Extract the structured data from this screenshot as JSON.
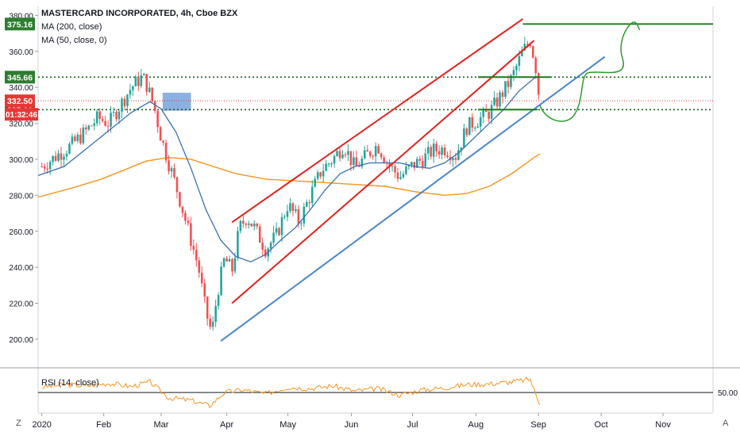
{
  "legend": {
    "title": "MASTERCARD INCORPORATED, 4h, Cboe BZX",
    "ma200": "MA (200, close)",
    "ma50": "MA (50, close, 0)"
  },
  "rsi_label": "RSI (14, close)",
  "corner_left": "Z",
  "corner_right": "A",
  "colors": {
    "up": "#26a69a",
    "down": "#ef5350",
    "ma50": "#3a6fb0",
    "ma200": "#f7931e",
    "channel": "#e3211c",
    "trend": "#4a86c8",
    "level": "#1b7a1b",
    "rsi": "#f7931e",
    "price_current": "#e53935",
    "level_badge": "#2e7d32"
  },
  "chart_data": {
    "type": "candlestick",
    "symbol": "MASTERCARD INCORPORATED",
    "interval": "4h",
    "exchange": "Cboe BZX",
    "ylim": [
      185,
      385
    ],
    "y_ticks": [
      200,
      220,
      240,
      260,
      280,
      300,
      320,
      340,
      360,
      380
    ],
    "y_tick_labels": [
      "200.00",
      "220.00",
      "240.00",
      "260.00",
      "280.00",
      "300.00",
      "320.00",
      "340.00",
      "360.00",
      "380.00"
    ],
    "x_labels": [
      "2020",
      "Feb",
      "Mar",
      "Apr",
      "May",
      "Jun",
      "Jul",
      "Aug",
      "Sep",
      "Oct",
      "Nov"
    ],
    "x_label_positions": [
      2020.0,
      2020.083,
      2020.16,
      2020.248,
      2020.33,
      2020.415,
      2020.497,
      2020.582,
      2020.666,
      2020.75,
      2020.833
    ],
    "xlim": [
      2019.995,
      2020.9
    ],
    "price_path": [
      [
        2020.0,
        296
      ],
      [
        2020.02,
        302
      ],
      [
        2020.04,
        308
      ],
      [
        2020.06,
        316
      ],
      [
        2020.075,
        323
      ],
      [
        2020.09,
        320
      ],
      [
        2020.105,
        330
      ],
      [
        2020.12,
        340
      ],
      [
        2020.135,
        346
      ],
      [
        2020.14,
        342
      ],
      [
        2020.15,
        330
      ],
      [
        2020.16,
        312
      ],
      [
        2020.17,
        298
      ],
      [
        2020.18,
        285
      ],
      [
        2020.19,
        270
      ],
      [
        2020.2,
        255
      ],
      [
        2020.21,
        240
      ],
      [
        2020.22,
        215
      ],
      [
        2020.228,
        203
      ],
      [
        2020.235,
        225
      ],
      [
        2020.245,
        245
      ],
      [
        2020.255,
        238
      ],
      [
        2020.265,
        262
      ],
      [
        2020.275,
        268
      ],
      [
        2020.285,
        262
      ],
      [
        2020.3,
        250
      ],
      [
        2020.315,
        258
      ],
      [
        2020.33,
        275
      ],
      [
        2020.345,
        265
      ],
      [
        2020.36,
        280
      ],
      [
        2020.375,
        294
      ],
      [
        2020.39,
        300
      ],
      [
        2020.405,
        308
      ],
      [
        2020.42,
        295
      ],
      [
        2020.435,
        302
      ],
      [
        2020.45,
        308
      ],
      [
        2020.465,
        297
      ],
      [
        2020.48,
        290
      ],
      [
        2020.495,
        296
      ],
      [
        2020.51,
        300
      ],
      [
        2020.525,
        305
      ],
      [
        2020.54,
        306
      ],
      [
        2020.555,
        302
      ],
      [
        2020.57,
        318
      ],
      [
        2020.585,
        322
      ],
      [
        2020.6,
        326
      ],
      [
        2020.615,
        335
      ],
      [
        2020.63,
        345
      ],
      [
        2020.645,
        360
      ],
      [
        2020.655,
        366
      ],
      [
        2020.662,
        352
      ],
      [
        2020.668,
        330
      ]
    ],
    "ma50_path": [
      [
        2019.995,
        291
      ],
      [
        2020.03,
        296
      ],
      [
        2020.06,
        306
      ],
      [
        2020.09,
        316
      ],
      [
        2020.12,
        326
      ],
      [
        2020.145,
        332
      ],
      [
        2020.16,
        328
      ],
      [
        2020.18,
        315
      ],
      [
        2020.2,
        295
      ],
      [
        2020.22,
        272
      ],
      [
        2020.24,
        255
      ],
      [
        2020.26,
        246
      ],
      [
        2020.28,
        243
      ],
      [
        2020.3,
        247
      ],
      [
        2020.32,
        255
      ],
      [
        2020.34,
        262
      ],
      [
        2020.36,
        272
      ],
      [
        2020.38,
        283
      ],
      [
        2020.4,
        292
      ],
      [
        2020.42,
        296
      ],
      [
        2020.44,
        298
      ],
      [
        2020.46,
        298
      ],
      [
        2020.48,
        298
      ],
      [
        2020.5,
        296
      ],
      [
        2020.52,
        295
      ],
      [
        2020.54,
        298
      ],
      [
        2020.56,
        304
      ],
      [
        2020.58,
        312
      ],
      [
        2020.6,
        320
      ],
      [
        2020.62,
        328
      ],
      [
        2020.64,
        338
      ],
      [
        2020.66,
        345
      ],
      [
        2020.668,
        346
      ]
    ],
    "ma200_path": [
      [
        2019.995,
        279
      ],
      [
        2020.04,
        284
      ],
      [
        2020.08,
        289
      ],
      [
        2020.11,
        294
      ],
      [
        2020.14,
        299
      ],
      [
        2020.17,
        301
      ],
      [
        2020.2,
        300
      ],
      [
        2020.23,
        296
      ],
      [
        2020.26,
        292
      ],
      [
        2020.3,
        289
      ],
      [
        2020.34,
        288
      ],
      [
        2020.38,
        287
      ],
      [
        2020.42,
        286
      ],
      [
        2020.46,
        285
      ],
      [
        2020.5,
        282
      ],
      [
        2020.54,
        280
      ],
      [
        2020.57,
        281
      ],
      [
        2020.6,
        285
      ],
      [
        2020.63,
        292
      ],
      [
        2020.66,
        301
      ],
      [
        2020.668,
        303
      ]
    ],
    "levels": [
      {
        "value": 375.16,
        "label": "375.16",
        "style": "solid",
        "x_start": 2020.645
      },
      {
        "value": 345.66,
        "label": "345.66",
        "style": "dotted",
        "x_start": 2019.995
      },
      {
        "value": 327.61,
        "label": "327.61",
        "style": "dotted",
        "x_start": 2019.995
      }
    ],
    "current_price": {
      "value": 332.5,
      "label": "332.50",
      "countdown": "01:32:46"
    },
    "channel_lines": [
      {
        "name": "upper",
        "from": [
          2020.255,
          265
        ],
        "to": [
          2020.645,
          378
        ]
      },
      {
        "name": "lower",
        "from": [
          2020.255,
          220
        ],
        "to": [
          2020.66,
          366
        ]
      }
    ],
    "trend_line": {
      "from": [
        2020.24,
        199
      ],
      "to": [
        2020.755,
        357
      ]
    },
    "green_segments": [
      {
        "value": 345.66,
        "from": 2020.585,
        "to": 2020.682
      },
      {
        "value": 327.61,
        "from": 2020.585,
        "to": 2020.665
      }
    ],
    "highlight_box": {
      "x0": 2020.162,
      "x1": 2020.2,
      "y0": 327,
      "y1": 337
    },
    "rsi": {
      "name": "RSI (14, close)",
      "level": 50,
      "level_label": "50.00",
      "path": [
        [
          2020.0,
          58
        ],
        [
          2020.03,
          62
        ],
        [
          2020.06,
          60
        ],
        [
          2020.09,
          64
        ],
        [
          2020.12,
          59
        ],
        [
          2020.145,
          66
        ],
        [
          2020.17,
          42
        ],
        [
          2020.2,
          38
        ],
        [
          2020.225,
          30
        ],
        [
          2020.245,
          50
        ],
        [
          2020.27,
          54
        ],
        [
          2020.3,
          48
        ],
        [
          2020.33,
          58
        ],
        [
          2020.36,
          56
        ],
        [
          2020.39,
          60
        ],
        [
          2020.42,
          52
        ],
        [
          2020.45,
          56
        ],
        [
          2020.48,
          46
        ],
        [
          2020.51,
          54
        ],
        [
          2020.54,
          57
        ],
        [
          2020.57,
          62
        ],
        [
          2020.6,
          63
        ],
        [
          2020.63,
          66
        ],
        [
          2020.655,
          70
        ],
        [
          2020.662,
          48
        ],
        [
          2020.668,
          33
        ]
      ]
    }
  }
}
